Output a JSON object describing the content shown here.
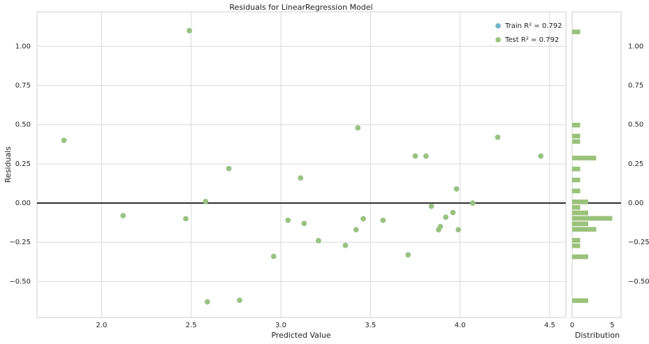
{
  "chart_data": [
    {
      "type": "scatter",
      "title": "Residuals for LinearRegression Model",
      "xlabel": "Predicted Value",
      "ylabel": "Residuals",
      "xlim": [
        1.64,
        4.59
      ],
      "ylim": [
        -0.73,
        1.22
      ],
      "xticks": [
        {
          "value": 2,
          "label": "2.0"
        },
        2.5,
        {
          "value": 3,
          "label": "3.0"
        },
        3.5,
        {
          "value": 4,
          "label": "4.0"
        },
        4.5
      ],
      "yticks": [
        {
          "value": -0.5,
          "label": "−0.50"
        },
        {
          "value": -0.25,
          "label": "−0.25"
        },
        {
          "value": 0,
          "label": "0.00"
        },
        {
          "value": 0.25,
          "label": "0.25"
        },
        {
          "value": 0.5,
          "label": "0.50"
        },
        {
          "value": 0.75,
          "label": "0.75"
        },
        {
          "value": 1,
          "label": "1.00"
        }
      ],
      "grid": true,
      "hline": 0,
      "legend": "upper right",
      "series": [
        {
          "name": "Train R² = 0.792",
          "color": "#72b1cc",
          "x": [
            1.79,
            2.12,
            2.47,
            2.49,
            2.58,
            2.71,
            2.59,
            2.77,
            2.96,
            3.04,
            3.11,
            3.13,
            3.21,
            3.36,
            3.42,
            3.46,
            3.43,
            3.57,
            3.71,
            3.75,
            3.81,
            3.84,
            3.89,
            3.88,
            3.92,
            3.96,
            3.98,
            3.99,
            4.07,
            4.21,
            4.45
          ],
          "values": [
            0.4,
            -0.08,
            -0.1,
            1.1,
            0.01,
            0.22,
            -0.63,
            -0.62,
            -0.34,
            -0.11,
            0.16,
            -0.13,
            -0.24,
            -0.27,
            -0.17,
            -0.1,
            0.48,
            -0.11,
            -0.33,
            0.3,
            0.3,
            -0.02,
            -0.15,
            -0.17,
            -0.09,
            -0.06,
            0.09,
            -0.17,
            0.0,
            0.42,
            0.3
          ]
        },
        {
          "name": "Test R² = 0.792",
          "color": "#9ac27a",
          "x": [
            1.79,
            2.12,
            2.47,
            2.49,
            2.58,
            2.71,
            2.59,
            2.77,
            2.96,
            3.04,
            3.11,
            3.13,
            3.21,
            3.36,
            3.42,
            3.46,
            3.43,
            3.57,
            3.71,
            3.75,
            3.81,
            3.84,
            3.89,
            3.88,
            3.92,
            3.96,
            3.98,
            3.99,
            4.07,
            4.21,
            4.45
          ],
          "values": [
            0.4,
            -0.08,
            -0.1,
            1.1,
            0.01,
            0.22,
            -0.63,
            -0.62,
            -0.34,
            -0.11,
            0.16,
            -0.13,
            -0.24,
            -0.27,
            -0.17,
            -0.1,
            0.48,
            -0.11,
            -0.33,
            0.3,
            0.3,
            -0.02,
            -0.15,
            -0.17,
            -0.09,
            -0.06,
            0.09,
            -0.17,
            0.0,
            0.42,
            0.3
          ]
        }
      ]
    },
    {
      "type": "histogram",
      "orientation": "horizontal",
      "xlabel": "Distribution",
      "color": "#9ac27a",
      "xlim": [
        0,
        6.1
      ],
      "xticks": [
        0,
        5
      ],
      "ylim": [
        -0.73,
        1.22
      ],
      "yticks": [
        {
          "value": -0.5,
          "label": "−0.50"
        },
        {
          "value": -0.25,
          "label": "−0.25"
        },
        {
          "value": 0,
          "label": "0.00"
        },
        {
          "value": 0.25,
          "label": "0.25"
        },
        {
          "value": 0.5,
          "label": "0.50"
        },
        {
          "value": 0.75,
          "label": "0.75"
        },
        {
          "value": 1,
          "label": "1.00"
        }
      ],
      "hline": 0,
      "bins": [
        -0.64,
        -0.605,
        -0.57,
        -0.535,
        -0.5,
        -0.465,
        -0.43,
        -0.395,
        -0.36,
        -0.325,
        -0.29,
        -0.255,
        -0.22,
        -0.185,
        -0.15,
        -0.115,
        -0.08,
        -0.045,
        -0.01,
        0.025,
        0.06,
        0.095,
        0.13,
        0.165,
        0.2,
        0.235,
        0.27,
        0.305,
        0.34,
        0.375,
        0.41,
        0.445,
        0.48,
        0.515,
        0.55,
        0.585,
        0.62,
        0.655,
        0.69,
        0.725,
        0.76,
        0.795,
        0.83,
        0.865,
        0.9,
        0.935,
        0.97,
        1.005,
        1.04,
        1.075,
        1.11
      ],
      "values": [
        2,
        0,
        0,
        0,
        0,
        0,
        0,
        0,
        2,
        0,
        1,
        1,
        0,
        3,
        2,
        5,
        2,
        1,
        2,
        0,
        1,
        0,
        1,
        0,
        1,
        0,
        3,
        0,
        0,
        1,
        1,
        0,
        1,
        0,
        0,
        0,
        0,
        0,
        0,
        0,
        0,
        0,
        0,
        0,
        0,
        0,
        0,
        0,
        0,
        1
      ]
    }
  ]
}
